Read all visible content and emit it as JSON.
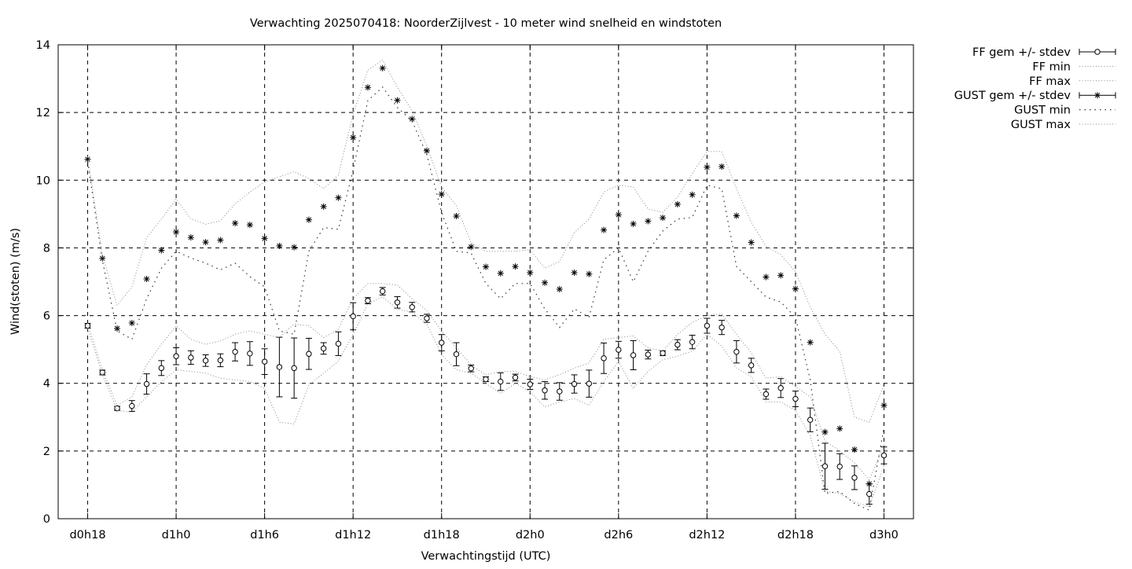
{
  "chart_data": {
    "type": "line",
    "title": "Verwachting 2025070418: NoorderZijlvest - 10 meter wind snelheid en windstoten",
    "xlabel": "Verwachtingstijd (UTC)",
    "ylabel": "Wind(stoten) (m/s)",
    "x_unit": "hours since d0h0",
    "xlim": [
      16,
      74
    ],
    "ylim": [
      0,
      14
    ],
    "yticks": [
      0,
      2,
      4,
      6,
      8,
      10,
      12,
      14
    ],
    "xticks": [
      {
        "x": 18,
        "label": "d0h18"
      },
      {
        "x": 24,
        "label": "d1h0"
      },
      {
        "x": 30,
        "label": "d1h6"
      },
      {
        "x": 36,
        "label": "d1h12"
      },
      {
        "x": 42,
        "label": "d1h18"
      },
      {
        "x": 48,
        "label": "d2h0"
      },
      {
        "x": 54,
        "label": "d2h6"
      },
      {
        "x": 60,
        "label": "d2h12"
      },
      {
        "x": 66,
        "label": "d2h18"
      },
      {
        "x": 72,
        "label": "d3h0"
      }
    ],
    "grid": true,
    "legend_position": "outside-top-right",
    "x": [
      18,
      19,
      20,
      21,
      22,
      23,
      24,
      25,
      26,
      27,
      28,
      29,
      30,
      31,
      32,
      33,
      34,
      35,
      36,
      37,
      38,
      39,
      40,
      41,
      42,
      43,
      44,
      45,
      46,
      47,
      48,
      49,
      50,
      51,
      52,
      53,
      54,
      55,
      56,
      57,
      58,
      59,
      60,
      61,
      62,
      63,
      64,
      65,
      66,
      67,
      68,
      69,
      70,
      71,
      72
    ],
    "series": [
      {
        "name": "FF gem +/- stdev",
        "style": "errorbars-circle",
        "values": [
          5.7,
          4.32,
          3.26,
          3.33,
          3.98,
          4.45,
          4.8,
          4.76,
          4.67,
          4.68,
          4.93,
          4.88,
          4.64,
          4.48,
          4.45,
          4.87,
          5.03,
          5.17,
          5.98,
          6.44,
          6.72,
          6.39,
          6.25,
          5.92,
          5.2,
          4.86,
          4.44,
          4.12,
          4.05,
          4.17,
          3.97,
          3.79,
          3.76,
          3.98,
          3.99,
          4.74,
          4.99,
          4.83,
          4.85,
          4.89,
          5.14,
          5.22,
          5.7,
          5.65,
          4.93,
          4.53,
          3.68,
          3.86,
          3.54,
          2.92,
          1.55,
          1.54,
          1.21,
          0.73,
          1.87
        ],
        "errors": [
          0.07,
          0.07,
          0.06,
          0.16,
          0.3,
          0.22,
          0.25,
          0.2,
          0.17,
          0.19,
          0.27,
          0.35,
          0.38,
          0.88,
          0.89,
          0.46,
          0.17,
          0.35,
          0.4,
          0.09,
          0.11,
          0.17,
          0.14,
          0.12,
          0.24,
          0.34,
          0.1,
          0.07,
          0.26,
          0.1,
          0.15,
          0.26,
          0.26,
          0.27,
          0.4,
          0.45,
          0.25,
          0.43,
          0.13,
          0.07,
          0.15,
          0.2,
          0.22,
          0.21,
          0.33,
          0.21,
          0.15,
          0.28,
          0.23,
          0.35,
          0.68,
          0.38,
          0.35,
          0.3,
          0.25
        ]
      },
      {
        "name": "FF min",
        "style": "dotted",
        "values": [
          5.62,
          4.26,
          3.2,
          3.15,
          3.6,
          4.05,
          4.4,
          4.35,
          4.3,
          4.15,
          4.1,
          4.05,
          3.85,
          2.85,
          2.8,
          3.95,
          4.3,
          4.65,
          5.45,
          6.35,
          6.55,
          6.2,
          6.1,
          5.75,
          4.85,
          4.4,
          4.3,
          4.0,
          3.7,
          4.0,
          3.75,
          3.3,
          3.45,
          3.55,
          3.35,
          4.05,
          4.65,
          3.85,
          4.35,
          4.7,
          4.8,
          4.95,
          5.45,
          5.1,
          4.45,
          4.2,
          3.45,
          3.45,
          3.2,
          2.45,
          0.8,
          0.75,
          0.5,
          0.35,
          1.55
        ]
      },
      {
        "name": "FF max",
        "style": "dotted",
        "values": [
          5.78,
          4.38,
          3.35,
          3.6,
          4.55,
          5.15,
          5.7,
          5.3,
          5.15,
          5.25,
          5.45,
          5.55,
          5.45,
          5.35,
          5.75,
          5.7,
          5.35,
          5.6,
          6.5,
          6.95,
          6.95,
          6.9,
          6.5,
          6.15,
          5.55,
          5.05,
          4.55,
          4.25,
          4.35,
          4.35,
          4.2,
          4.1,
          4.25,
          4.45,
          4.6,
          5.3,
          5.35,
          5.4,
          5.05,
          4.95,
          5.45,
          5.8,
          6.0,
          6.05,
          5.45,
          4.9,
          4.15,
          4.2,
          3.9,
          3.6,
          2.3,
          2.0,
          1.65,
          1.15,
          2.15
        ]
      },
      {
        "name": "GUST gem +/- stdev",
        "style": "errorbars-star",
        "values": [
          10.62,
          7.69,
          5.62,
          5.78,
          7.08,
          7.93,
          8.47,
          8.31,
          8.17,
          8.23,
          8.73,
          8.68,
          8.28,
          8.06,
          8.02,
          8.83,
          9.22,
          9.48,
          11.26,
          12.74,
          13.31,
          12.36,
          11.81,
          10.87,
          9.59,
          8.94,
          8.03,
          7.44,
          7.25,
          7.45,
          7.27,
          6.97,
          6.78,
          7.27,
          7.23,
          8.53,
          8.98,
          8.71,
          8.79,
          8.89,
          9.29,
          9.57,
          10.38,
          10.4,
          8.95,
          8.16,
          7.14,
          7.19,
          6.79,
          5.21,
          2.56,
          2.66,
          2.04,
          1.03,
          3.35
        ]
      },
      {
        "name": "GUST min",
        "style": "dotted-sparse",
        "values": [
          10.55,
          7.62,
          5.55,
          5.3,
          6.5,
          7.4,
          7.9,
          7.7,
          7.55,
          7.35,
          7.55,
          7.15,
          6.85,
          5.55,
          5.45,
          7.9,
          8.6,
          8.55,
          10.3,
          12.35,
          12.75,
          12.15,
          11.75,
          10.75,
          9.05,
          7.9,
          7.85,
          6.95,
          6.5,
          6.95,
          6.95,
          6.2,
          5.65,
          6.2,
          5.95,
          7.65,
          8.0,
          7.0,
          7.9,
          8.5,
          8.85,
          8.9,
          9.85,
          9.75,
          7.45,
          7.0,
          6.55,
          6.4,
          5.95,
          4.1,
          0.75,
          0.8,
          0.45,
          0.25,
          2.7
        ]
      },
      {
        "name": "GUST max",
        "style": "dotted",
        "values": [
          10.7,
          7.78,
          6.3,
          6.85,
          8.3,
          8.85,
          9.45,
          8.85,
          8.7,
          8.8,
          9.3,
          9.65,
          9.95,
          10.1,
          10.25,
          10.05,
          9.75,
          10.15,
          11.95,
          13.25,
          13.55,
          12.75,
          12.05,
          11.0,
          9.8,
          9.25,
          8.15,
          7.9,
          7.9,
          7.9,
          7.95,
          7.4,
          7.6,
          8.45,
          8.85,
          9.65,
          9.85,
          9.8,
          9.15,
          9.05,
          9.5,
          10.2,
          10.85,
          10.85,
          9.75,
          8.75,
          8.05,
          7.8,
          7.3,
          6.25,
          5.45,
          4.95,
          3.0,
          2.85,
          3.95
        ]
      }
    ]
  }
}
